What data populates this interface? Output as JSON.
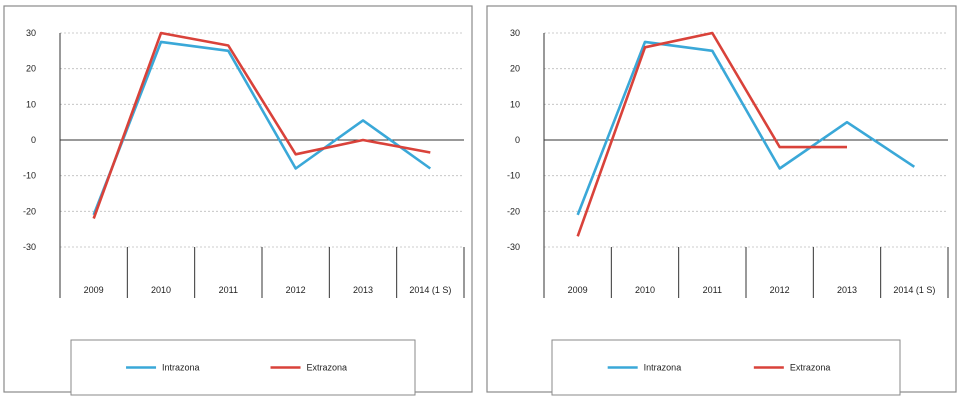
{
  "chart_data": [
    {
      "type": "line",
      "categories": [
        "2009",
        "2010",
        "2011",
        "2012",
        "2013",
        "2014 (1 S)"
      ],
      "ylim": [
        -30,
        30
      ],
      "yticks": [
        30,
        20,
        10,
        0,
        -10,
        -20,
        -30
      ],
      "grid": true,
      "legend_position": "bottom",
      "series": [
        {
          "name": "Intrazona",
          "color": "#3aa8d8",
          "values": [
            -21,
            27.5,
            25,
            -8,
            5.5,
            -8
          ]
        },
        {
          "name": "Extrazona",
          "color": "#d9423a",
          "values": [
            -22,
            30,
            26.5,
            -4,
            0,
            -3.5
          ]
        }
      ]
    },
    {
      "type": "line",
      "categories": [
        "2009",
        "2010",
        "2011",
        "2012",
        "2013",
        "2014 (1 S)"
      ],
      "ylim": [
        -30,
        30
      ],
      "yticks": [
        30,
        20,
        10,
        0,
        -10,
        -20,
        -30
      ],
      "grid": true,
      "legend_position": "bottom",
      "series": [
        {
          "name": "Intrazona",
          "color": "#3aa8d8",
          "values": [
            -21,
            27.5,
            25,
            -8,
            5,
            -7.5
          ]
        },
        {
          "name": "Extrazona",
          "color": "#d9423a",
          "values": [
            -27,
            26,
            30,
            -2,
            -2,
            null
          ]
        }
      ]
    }
  ]
}
